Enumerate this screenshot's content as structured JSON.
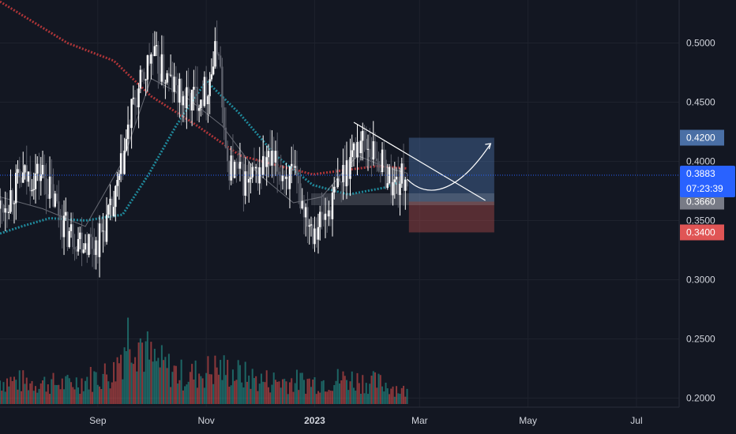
{
  "chart_data": {
    "type": "candlestick",
    "title": "",
    "background": "#131722",
    "price_axis": {
      "ticks": [
        "0.5000",
        "0.4500",
        "0.4000",
        "0.3500",
        "0.3000",
        "0.2500",
        "0.2000"
      ],
      "tick_values": [
        0.5,
        0.45,
        0.4,
        0.35,
        0.3,
        0.25,
        0.2
      ],
      "range": [
        0.195,
        0.535
      ]
    },
    "time_axis": {
      "labels": [
        "Sep",
        "Nov",
        "2023",
        "Mar",
        "May",
        "Jul"
      ],
      "label_dates": [
        "2022-09-01",
        "2022-11-01",
        "2023-01-01",
        "2023-03-01",
        "2023-05-01",
        "2023-07-01"
      ],
      "range": [
        "2022-07-08",
        "2023-07-25"
      ],
      "bold": "2023"
    },
    "last_price": {
      "value": "0.3883",
      "countdown": "07:23:39",
      "color": "#2962ff"
    },
    "position_tool": {
      "entry": "0.3660",
      "target": "0.4200",
      "stop": "0.3400",
      "date_range": [
        "2023-02-23",
        "2023-04-12"
      ],
      "profit_color": "#4a6fa5",
      "loss_color": "#a94a4a"
    },
    "support_zone": {
      "price_range": [
        0.363,
        0.373
      ],
      "date_range": [
        "2022-12-30",
        "2023-04-12"
      ]
    },
    "trendline": {
      "points": [
        [
          "2023-01-23",
          0.433
        ],
        [
          "2023-04-07",
          0.367
        ]
      ]
    },
    "projection_curve": {
      "points": [
        [
          "2023-02-22",
          0.385
        ],
        [
          "2023-03-05",
          0.368
        ],
        [
          "2023-03-22",
          0.372
        ],
        [
          "2023-04-10",
          0.415
        ]
      ]
    },
    "moving_averages": [
      {
        "name": "slow",
        "color": "#c0393b",
        "points": [
          [
            "2022-07-08",
            0.535
          ],
          [
            "2022-08-15",
            0.5
          ],
          [
            "2022-09-10",
            0.485
          ],
          [
            "2022-10-01",
            0.455
          ],
          [
            "2022-10-25",
            0.432
          ],
          [
            "2022-11-20",
            0.405
          ],
          [
            "2022-12-15",
            0.395
          ],
          [
            "2022-12-31",
            0.389
          ],
          [
            "2023-01-20",
            0.393
          ],
          [
            "2023-02-05",
            0.396
          ],
          [
            "2023-02-22",
            0.394
          ]
        ]
      },
      {
        "name": "medium",
        "color": "#2196a8",
        "points": [
          [
            "2022-07-08",
            0.339
          ],
          [
            "2022-07-20",
            0.345
          ],
          [
            "2022-08-05",
            0.352
          ],
          [
            "2022-08-25",
            0.35
          ],
          [
            "2022-09-15",
            0.355
          ],
          [
            "2022-09-30",
            0.39
          ],
          [
            "2022-10-15",
            0.43
          ],
          [
            "2022-11-01",
            0.468
          ],
          [
            "2022-11-20",
            0.44
          ],
          [
            "2022-12-10",
            0.405
          ],
          [
            "2022-12-31",
            0.38
          ],
          [
            "2023-01-20",
            0.372
          ],
          [
            "2023-02-10",
            0.378
          ],
          [
            "2023-02-22",
            0.385
          ]
        ]
      },
      {
        "name": "fast",
        "color": "#8a8d96",
        "points": [
          [
            "2022-07-08",
            0.37
          ],
          [
            "2022-08-01",
            0.36
          ],
          [
            "2022-08-25",
            0.345
          ],
          [
            "2022-09-15",
            0.4
          ],
          [
            "2022-10-01",
            0.47
          ],
          [
            "2022-10-20",
            0.455
          ],
          [
            "2022-11-10",
            0.43
          ],
          [
            "2022-11-30",
            0.39
          ],
          [
            "2022-12-20",
            0.365
          ],
          [
            "2023-01-05",
            0.37
          ],
          [
            "2023-01-25",
            0.405
          ],
          [
            "2023-02-10",
            0.395
          ],
          [
            "2023-02-22",
            0.39
          ]
        ]
      }
    ],
    "price_series": {
      "start_date": "2022-07-08",
      "key_closes": [
        [
          "2022-07-08",
          0.36
        ],
        [
          "2022-07-20",
          0.385
        ],
        [
          "2022-08-01",
          0.39
        ],
        [
          "2022-08-15",
          0.34
        ],
        [
          "2022-08-31",
          0.33
        ],
        [
          "2022-09-10",
          0.36
        ],
        [
          "2022-09-20",
          0.44
        ],
        [
          "2022-10-01",
          0.49
        ],
        [
          "2022-10-10",
          0.47
        ],
        [
          "2022-10-20",
          0.45
        ],
        [
          "2022-11-01",
          0.46
        ],
        [
          "2022-11-08",
          0.5
        ],
        [
          "2022-11-12",
          0.4
        ],
        [
          "2022-11-25",
          0.38
        ],
        [
          "2022-12-05",
          0.4
        ],
        [
          "2022-12-20",
          0.385
        ],
        [
          "2022-12-31",
          0.345
        ],
        [
          "2023-01-08",
          0.355
        ],
        [
          "2023-01-20",
          0.4
        ],
        [
          "2023-01-27",
          0.42
        ],
        [
          "2023-02-05",
          0.405
        ],
        [
          "2023-02-14",
          0.38
        ],
        [
          "2023-02-22",
          0.388
        ]
      ]
    },
    "volume_series": {
      "key_values": [
        [
          "2022-07-08",
          0.3
        ],
        [
          "2022-08-15",
          0.25
        ],
        [
          "2022-09-10",
          0.4
        ],
        [
          "2022-09-20",
          1.0
        ],
        [
          "2022-10-01",
          0.55
        ],
        [
          "2022-10-20",
          0.35
        ],
        [
          "2022-11-08",
          0.45
        ],
        [
          "2022-12-01",
          0.3
        ],
        [
          "2022-12-31",
          0.28
        ],
        [
          "2023-01-20",
          0.32
        ],
        [
          "2023-02-10",
          0.25
        ],
        [
          "2023-02-22",
          0.15
        ]
      ]
    },
    "volume_colors": {
      "up": "#26a69a",
      "down": "#ef5350"
    }
  }
}
